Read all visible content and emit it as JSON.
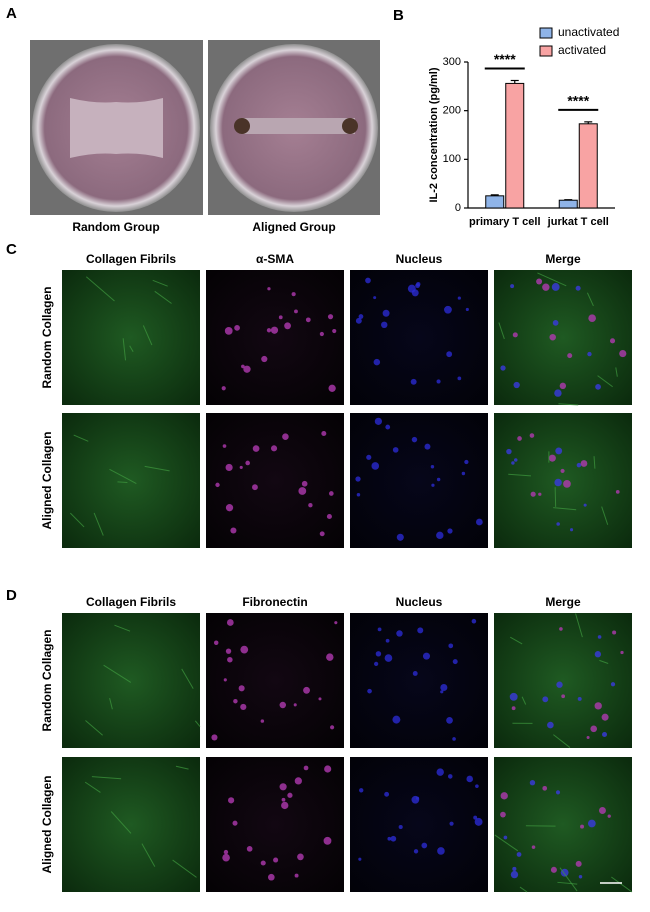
{
  "panels": {
    "A": {
      "label": "A",
      "captions": [
        "Random Group",
        "Aligned Group"
      ]
    },
    "B": {
      "label": "B"
    },
    "C": {
      "label": "C",
      "columns": [
        "Collagen Fibrils",
        "α-SMA",
        "Nucleus",
        "Merge"
      ],
      "rows": [
        "Random Collagen",
        "Aligned Collagen"
      ]
    },
    "D": {
      "label": "D",
      "columns": [
        "Collagen Fibrils",
        "Fibronectin",
        "Nucleus",
        "Merge"
      ],
      "rows": [
        "Random Collagen",
        "Aligned Collagen"
      ]
    }
  },
  "chart_data": {
    "type": "bar",
    "y_label": "IL-2 concentration (pg/ml)",
    "categories": [
      "primary T cell",
      "jurkat T cell"
    ],
    "series": [
      {
        "name": "unactivated",
        "color": "#8fb4e8",
        "values": [
          25,
          16
        ],
        "errors": [
          2,
          1
        ]
      },
      {
        "name": "activated",
        "color": "#f8a3a3",
        "values": [
          256,
          173
        ],
        "errors": [
          6,
          4
        ]
      }
    ],
    "annotations": [
      "****",
      "****"
    ],
    "ylim": [
      0,
      300
    ],
    "yticks": [
      0,
      100,
      200,
      300
    ],
    "legend": "top-right"
  }
}
